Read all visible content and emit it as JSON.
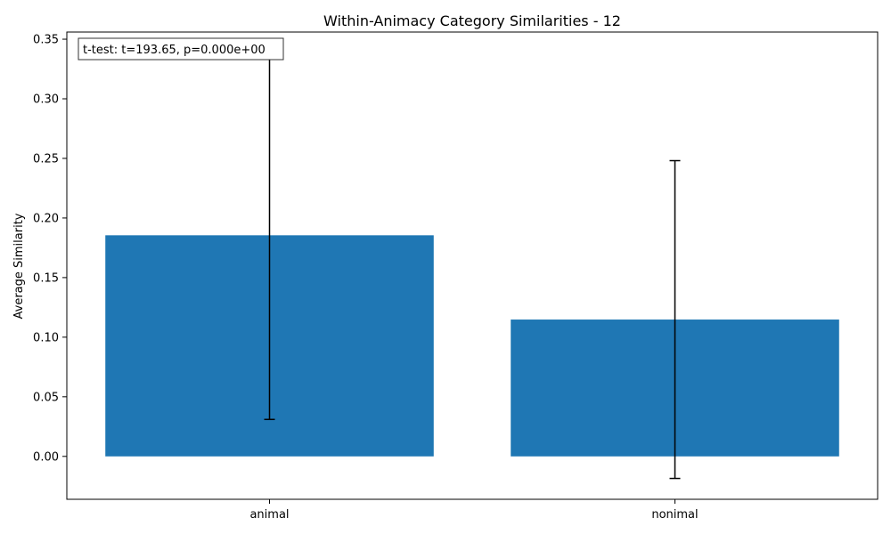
{
  "chart_data": {
    "type": "bar",
    "title": "Within-Animacy Category Similarities - 12",
    "xlabel": "",
    "ylabel": "Average Similarity",
    "categories": [
      "animal",
      "nonimal"
    ],
    "values": [
      0.1855,
      0.1148
    ],
    "errors": [
      0.1545,
      0.1333
    ],
    "ylim": [
      -0.036,
      0.356
    ],
    "yticks": [
      "0.00",
      "0.05",
      "0.10",
      "0.15",
      "0.20",
      "0.25",
      "0.30",
      "0.35"
    ],
    "ytick_values": [
      0,
      0.05,
      0.1,
      0.15,
      0.2,
      0.25,
      0.3,
      0.35
    ],
    "annotation": "t-test: t=193.65, p=0.000e+00",
    "annotation_position": "top-left",
    "grid": false,
    "bar_color": "#1f77b4",
    "error_color": "#000000"
  }
}
